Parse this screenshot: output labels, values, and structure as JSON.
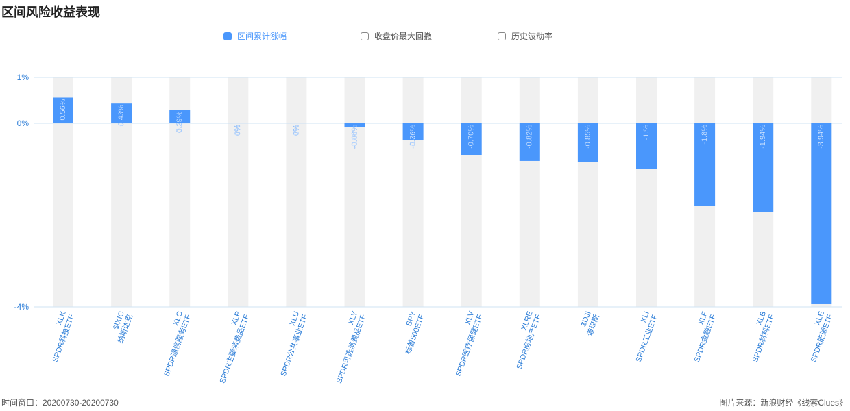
{
  "title": "区间风险收益表现",
  "legend": [
    {
      "label": "区间累计涨幅",
      "active": true
    },
    {
      "label": "收盘价最大回撤",
      "active": false
    },
    {
      "label": "历史波动率",
      "active": false
    }
  ],
  "colors": {
    "bar": "#4a97fc",
    "track": "#f0f0f0",
    "axis": "#2f7fd8",
    "grid": "#cfe3f3"
  },
  "chart_data": {
    "type": "bar",
    "series": [
      {
        "name": "区间累计涨幅",
        "values": [
          0.56,
          0.43,
          0.29,
          0,
          0,
          -0.08,
          -0.36,
          -0.7,
          -0.82,
          -0.85,
          -1.0,
          -1.8,
          -1.94,
          -3.94
        ]
      }
    ],
    "categories": [
      {
        "code": "XLK",
        "name": "SPDR科技ETF"
      },
      {
        "code": "$IXIC",
        "name": "纳斯达克"
      },
      {
        "code": "XLC",
        "name": "SPDR通信服务ETF"
      },
      {
        "code": "XLP",
        "name": "SPDR主要消费品ETF"
      },
      {
        "code": "XLU",
        "name": "SPDR公共事业ETF"
      },
      {
        "code": "XLY",
        "name": "SPDR可选消费品ETF"
      },
      {
        "code": "SPY",
        "name": "标普500ETF"
      },
      {
        "code": "XLV",
        "name": "SPDR医疗保健ETF"
      },
      {
        "code": "XLRE",
        "name": "SPDR房地产ETF"
      },
      {
        "code": "$DJI",
        "name": "道琼斯"
      },
      {
        "code": "XLI",
        "name": "SPDR工业ETF"
      },
      {
        "code": "XLF",
        "name": "SPDR金融ETF"
      },
      {
        "code": "XLB",
        "name": "SPDR材料ETF"
      },
      {
        "code": "XLE",
        "name": "SPDR能源ETF"
      }
    ],
    "data_labels": [
      "0.56%",
      "0.43%",
      "0.29%",
      "0%",
      "0%",
      "-0.08%",
      "-0.36%",
      "-0.70%",
      "-0.82%",
      "-0.85%",
      "-1.%",
      "-1.8%",
      "-1.94%",
      "-3.94%"
    ],
    "y_ticks": [
      {
        "value": 1,
        "label": "1%"
      },
      {
        "value": 0,
        "label": "0%"
      },
      {
        "value": -4,
        "label": "-4%"
      }
    ],
    "ylim": [
      -4,
      1
    ],
    "xlabel": "",
    "ylabel": "",
    "grid": true
  },
  "footer": {
    "time_window": "时间窗口：20200730-20200730",
    "source": "图片来源：新浪财经《线索Clues》"
  }
}
